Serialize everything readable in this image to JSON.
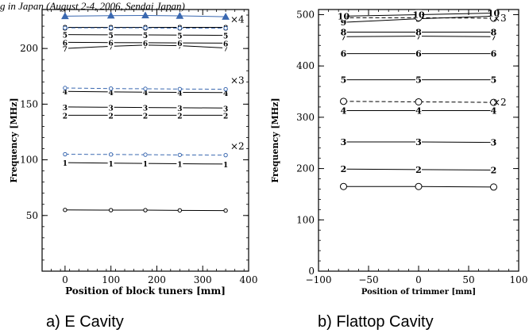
{
  "header": {
    "text": "g in Japan (August 2-4, 2006, Sendai Japan)"
  },
  "chart_data": [
    {
      "type": "line",
      "caption": "a) E Cavity",
      "xlabel": "Position of block tuners [mm]",
      "ylabel": "Frequency [MHz]",
      "xlim": [
        -50,
        400
      ],
      "ylim": [
        0,
        235
      ],
      "xticks": [
        0,
        100,
        200,
        300,
        400
      ],
      "yticks": [
        50,
        100,
        150,
        200
      ],
      "x": [
        0,
        100,
        175,
        250,
        350
      ],
      "series": [
        {
          "values": [
            55,
            54.8,
            54.8,
            54.6,
            54.4
          ],
          "marker": "circle",
          "color": "#000000"
        },
        {
          "label": "1",
          "values": [
            97.5,
            97,
            96.8,
            96.5,
            96.2
          ],
          "marker": "label",
          "color": "#000000"
        },
        {
          "values": [
            105,
            104.8,
            104.6,
            104.4,
            104.2
          ],
          "marker": "circle",
          "dashed": true,
          "color": "#3a68b0",
          "annotation": "×2"
        },
        {
          "label": "2",
          "values": [
            140,
            140,
            140,
            140,
            140
          ],
          "marker": "label",
          "color": "#000000"
        },
        {
          "label": "3",
          "values": [
            147.5,
            147.2,
            147,
            146.8,
            146.5
          ],
          "marker": "label",
          "color": "#000000"
        },
        {
          "label": "4",
          "values": [
            161.5,
            161,
            160.8,
            160.6,
            160.4
          ],
          "marker": "label",
          "color": "#000000"
        },
        {
          "values": [
            164.5,
            164,
            163.8,
            163.6,
            163.4
          ],
          "marker": "circle",
          "dashed": true,
          "color": "#3a68b0",
          "annotation": "×3"
        },
        {
          "label": "7",
          "values": [
            200,
            202,
            203,
            202.5,
            200.5
          ],
          "marker": "label",
          "color": "#000000"
        },
        {
          "label": "6",
          "values": [
            205.5,
            205.3,
            205.2,
            205,
            204.8
          ],
          "marker": "label",
          "color": "#000000"
        },
        {
          "label": "5",
          "values": [
            212.5,
            212.3,
            212.2,
            212,
            211.8
          ],
          "marker": "label",
          "color": "#000000"
        },
        {
          "label": "8",
          "values": [
            219,
            219,
            219,
            219,
            219
          ],
          "marker": "label",
          "color": "#000000"
        },
        {
          "values": [
            218.5,
            218.5,
            218.5,
            218.2,
            218.2
          ],
          "marker": "circle",
          "dashed": true,
          "color": "#3a68b0",
          "annotation": "×4"
        },
        {
          "values": [
            229,
            229.5,
            229.7,
            229.3,
            228.5
          ],
          "marker": "triangle",
          "color": "#3a68b0"
        }
      ]
    },
    {
      "type": "line",
      "caption": "b) Flattop Cavity",
      "xlabel": "Position of trimmer [mm]",
      "ylabel": "Frequency [MHz]",
      "xlim": [
        -100,
        100
      ],
      "ylim": [
        0,
        510
      ],
      "xticks": [
        -100,
        -50,
        0,
        50,
        100
      ],
      "yticks": [
        0,
        100,
        200,
        300,
        400,
        500
      ],
      "x": [
        -75,
        0,
        75
      ],
      "series": [
        {
          "values": [
            165,
            165,
            164
          ],
          "marker": "circle",
          "color": "#000000"
        },
        {
          "label": "2",
          "values": [
            199,
            198,
            197
          ],
          "marker": "label",
          "color": "#000000"
        },
        {
          "label": "3",
          "values": [
            252,
            252,
            251
          ],
          "marker": "label",
          "color": "#000000"
        },
        {
          "label": "4",
          "values": [
            313,
            313,
            313
          ],
          "marker": "label",
          "color": "#000000"
        },
        {
          "values": [
            331,
            330,
            329
          ],
          "marker": "circle",
          "dashed": true,
          "color": "#000000",
          "annotation": "×2"
        },
        {
          "label": "5",
          "values": [
            373,
            373,
            373
          ],
          "marker": "label",
          "color": "#000000"
        },
        {
          "label": "6",
          "values": [
            424,
            424,
            424
          ],
          "marker": "label",
          "color": "#000000"
        },
        {
          "label": "7",
          "values": [
            457,
            458,
            457
          ],
          "marker": "label",
          "color": "#000000"
        },
        {
          "label": "8",
          "values": [
            466,
            466,
            466
          ],
          "marker": "label",
          "color": "#000000"
        },
        {
          "label": "9",
          "values": [
            485,
            492,
            497
          ],
          "marker": "label",
          "color": "#000000"
        },
        {
          "values": [
            494,
            494,
            493
          ],
          "marker": "circle",
          "dashed": true,
          "color": "#000000",
          "annotation": "×3"
        },
        {
          "label": "10",
          "values": [
            497,
            500,
            503
          ],
          "marker": "label",
          "color": "#000000"
        }
      ]
    }
  ]
}
